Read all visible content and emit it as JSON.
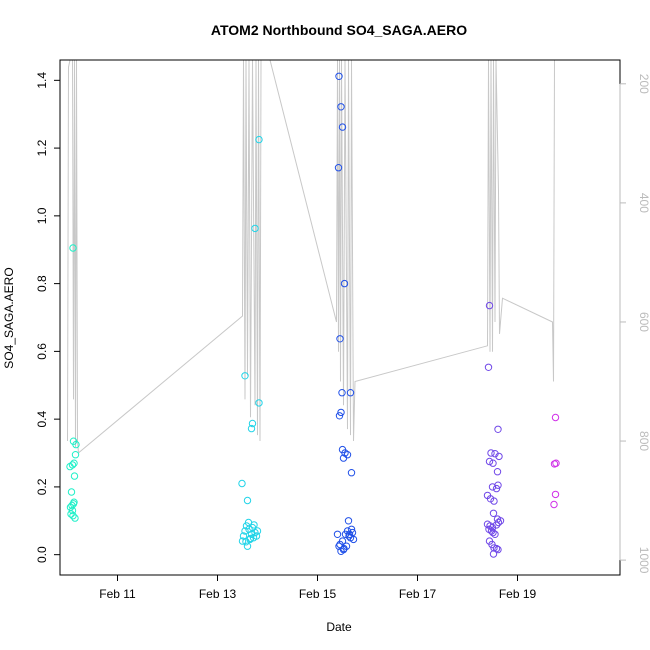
{
  "chart_data": {
    "type": "scatter",
    "title": "ATOM2 Northbound SO4_SAGA.AERO",
    "xlabel": "Date",
    "ylabel": "SO4_SAGA.AERO",
    "x_unit": "days in February (day-of-month, fractional)",
    "xlim": [
      9.85,
      21.05
    ],
    "ylim": [
      -0.06,
      1.46
    ],
    "x_ticks": [
      {
        "v": 11,
        "label": "Feb 11"
      },
      {
        "v": 13,
        "label": "Feb 13"
      },
      {
        "v": 15,
        "label": "Feb 15"
      },
      {
        "v": 17,
        "label": "Feb 17"
      },
      {
        "v": 19,
        "label": "Feb 19"
      }
    ],
    "y_ticks": [
      0.0,
      0.2,
      0.4,
      0.6,
      0.8,
      1.0,
      1.2,
      1.4
    ],
    "y_tick_labels": [
      "0.0",
      "0.2",
      "0.4",
      "0.6",
      "0.8",
      "1.0",
      "1.2",
      "1.4"
    ],
    "y2_ticks": [
      200,
      400,
      600,
      800,
      1000
    ],
    "y2_lim": [
      1025,
      160
    ],
    "y2_inverted": true,
    "grid": false,
    "legend": "none",
    "colors": {
      "altitude_line": "#c8c8c8",
      "axis": "#000000",
      "y2_axis": "#bbbbbb"
    },
    "point_groups": [
      {
        "color": "#1ef0c8",
        "points": [
          [
            10.11,
            0.905
          ],
          [
            10.05,
            0.26
          ],
          [
            10.1,
            0.265
          ],
          [
            10.13,
            0.27
          ],
          [
            10.12,
            0.335
          ],
          [
            10.17,
            0.325
          ],
          [
            10.16,
            0.295
          ],
          [
            10.14,
            0.232
          ],
          [
            10.08,
            0.185
          ],
          [
            10.09,
            0.145
          ],
          [
            10.1,
            0.13
          ],
          [
            10.12,
            0.15
          ],
          [
            10.07,
            0.12
          ],
          [
            10.11,
            0.115
          ],
          [
            10.15,
            0.108
          ],
          [
            10.06,
            0.14
          ],
          [
            10.13,
            0.155
          ]
        ]
      },
      {
        "color": "#22d4e8",
        "points": [
          [
            13.83,
            1.225
          ],
          [
            13.75,
            0.963
          ],
          [
            13.55,
            0.528
          ],
          [
            13.83,
            0.448
          ],
          [
            13.7,
            0.387
          ],
          [
            13.68,
            0.372
          ],
          [
            13.49,
            0.21
          ],
          [
            13.6,
            0.16
          ],
          [
            13.5,
            0.04
          ],
          [
            13.52,
            0.055
          ],
          [
            13.55,
            0.07
          ],
          [
            13.58,
            0.085
          ],
          [
            13.6,
            0.025
          ],
          [
            13.62,
            0.095
          ],
          [
            13.65,
            0.045
          ],
          [
            13.68,
            0.06
          ],
          [
            13.7,
            0.08
          ],
          [
            13.72,
            0.05
          ],
          [
            13.75,
            0.065
          ],
          [
            13.78,
            0.055
          ],
          [
            13.8,
            0.07
          ],
          [
            13.57,
            0.038
          ],
          [
            13.63,
            0.075
          ],
          [
            13.66,
            0.048
          ],
          [
            13.73,
            0.088
          ]
        ]
      },
      {
        "color": "#2050e8",
        "points": [
          [
            15.43,
            1.412
          ],
          [
            15.47,
            1.322
          ],
          [
            15.5,
            1.262
          ],
          [
            15.42,
            1.142
          ],
          [
            15.54,
            0.8
          ],
          [
            15.45,
            0.637
          ],
          [
            15.49,
            0.478
          ],
          [
            15.66,
            0.478
          ],
          [
            15.47,
            0.42
          ],
          [
            15.44,
            0.41
          ],
          [
            15.5,
            0.31
          ],
          [
            15.55,
            0.3
          ],
          [
            15.6,
            0.295
          ],
          [
            15.52,
            0.285
          ],
          [
            15.68,
            0.242
          ],
          [
            15.4,
            0.06
          ],
          [
            15.43,
            0.025
          ],
          [
            15.47,
            0.01
          ],
          [
            15.5,
            0.04
          ],
          [
            15.53,
            0.018
          ],
          [
            15.56,
            0.06
          ],
          [
            15.58,
            0.025
          ],
          [
            15.6,
            0.07
          ],
          [
            15.62,
            0.1
          ],
          [
            15.64,
            0.06
          ],
          [
            15.66,
            0.05
          ],
          [
            15.68,
            0.075
          ],
          [
            15.7,
            0.065
          ],
          [
            15.72,
            0.045
          ],
          [
            15.45,
            0.03
          ],
          [
            15.52,
            0.015
          ],
          [
            15.63,
            0.055
          ]
        ]
      },
      {
        "color": "#7048e8",
        "points": [
          [
            18.44,
            0.735
          ],
          [
            18.42,
            0.553
          ],
          [
            18.61,
            0.37
          ],
          [
            18.47,
            0.3
          ],
          [
            18.55,
            0.298
          ],
          [
            18.63,
            0.29
          ],
          [
            18.44,
            0.275
          ],
          [
            18.51,
            0.27
          ],
          [
            18.6,
            0.245
          ],
          [
            18.61,
            0.205
          ],
          [
            18.5,
            0.2
          ],
          [
            18.58,
            0.195
          ],
          [
            18.4,
            0.175
          ],
          [
            18.46,
            0.165
          ],
          [
            18.53,
            0.158
          ],
          [
            18.52,
            0.122
          ],
          [
            18.6,
            0.105
          ],
          [
            18.62,
            0.095
          ],
          [
            18.4,
            0.09
          ],
          [
            18.45,
            0.085
          ],
          [
            18.5,
            0.08
          ],
          [
            18.43,
            0.075
          ],
          [
            18.48,
            0.07
          ],
          [
            18.51,
            0.065
          ],
          [
            18.55,
            0.06
          ],
          [
            18.44,
            0.04
          ],
          [
            18.49,
            0.03
          ],
          [
            18.53,
            0.02
          ],
          [
            18.58,
            0.018
          ],
          [
            18.61,
            0.015
          ],
          [
            18.52,
            0.002
          ],
          [
            18.66,
            0.1
          ],
          [
            18.58,
            0.088
          ]
        ]
      },
      {
        "color": "#d030e8",
        "points": [
          [
            19.76,
            0.405
          ],
          [
            19.74,
            0.268
          ],
          [
            19.77,
            0.27
          ],
          [
            19.76,
            0.178
          ],
          [
            19.73,
            0.148
          ]
        ]
      }
    ],
    "altitude_line": [
      [
        10.0,
        800
      ],
      [
        10.02,
        172
      ],
      [
        10.05,
        160
      ],
      [
        10.1,
        160
      ],
      [
        10.12,
        730
      ],
      [
        10.14,
        160
      ],
      [
        10.16,
        810
      ],
      [
        10.18,
        160
      ],
      [
        10.2,
        800
      ],
      [
        10.22,
        820
      ],
      [
        13.5,
        590
      ],
      [
        13.52,
        160
      ],
      [
        13.55,
        730
      ],
      [
        13.57,
        160
      ],
      [
        13.6,
        690
      ],
      [
        13.63,
        160
      ],
      [
        13.66,
        760
      ],
      [
        13.7,
        160
      ],
      [
        13.75,
        740
      ],
      [
        13.77,
        160
      ],
      [
        13.8,
        790
      ],
      [
        13.82,
        160
      ],
      [
        13.85,
        800
      ],
      [
        13.87,
        160
      ],
      [
        14.05,
        160
      ],
      [
        15.38,
        600
      ],
      [
        15.4,
        160
      ],
      [
        15.42,
        650
      ],
      [
        15.44,
        160
      ],
      [
        15.46,
        700
      ],
      [
        15.48,
        160
      ],
      [
        15.52,
        740
      ],
      [
        15.55,
        160
      ],
      [
        15.6,
        780
      ],
      [
        15.62,
        160
      ],
      [
        15.66,
        790
      ],
      [
        15.68,
        160
      ],
      [
        15.72,
        800
      ],
      [
        15.75,
        700
      ],
      [
        18.4,
        640
      ],
      [
        18.42,
        160
      ],
      [
        18.45,
        650
      ],
      [
        18.47,
        160
      ],
      [
        18.5,
        650
      ],
      [
        18.52,
        160
      ],
      [
        18.55,
        600
      ],
      [
        18.57,
        160
      ],
      [
        18.62,
        380
      ],
      [
        18.64,
        620
      ],
      [
        18.7,
        560
      ],
      [
        19.7,
        600
      ],
      [
        19.72,
        700
      ],
      [
        19.74,
        160
      ]
    ]
  }
}
